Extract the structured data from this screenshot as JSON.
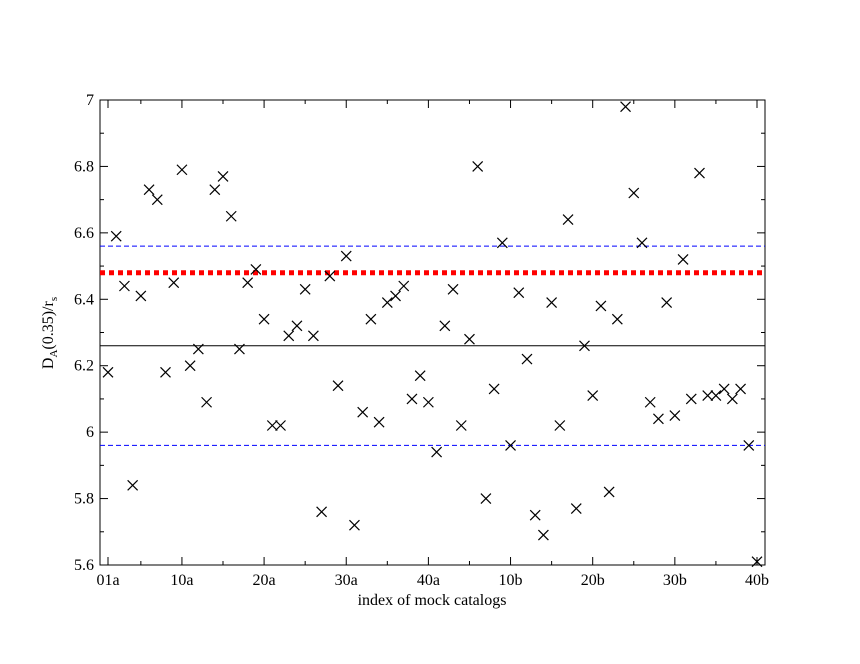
{
  "chart_data": {
    "type": "scatter",
    "title": "",
    "xlabel": "index of mock catalogs",
    "ylabel": {
      "main": "D",
      "sub1": "A",
      "mid": "(0.35)/r",
      "sub2": "s"
    },
    "xlim": [
      0,
      80
    ],
    "ylim": [
      5.6,
      7.0
    ],
    "grid": false,
    "x_tick_labels": [
      {
        "x": 0,
        "label": "01a"
      },
      {
        "x": 9,
        "label": "10a"
      },
      {
        "x": 19,
        "label": "20a"
      },
      {
        "x": 29,
        "label": "30a"
      },
      {
        "x": 39,
        "label": "40a"
      },
      {
        "x": 49,
        "label": "10b"
      },
      {
        "x": 59,
        "label": "20b"
      },
      {
        "x": 69,
        "label": "30b"
      },
      {
        "x": 79,
        "label": "40b"
      }
    ],
    "y_ticks": [
      5.6,
      5.8,
      6.0,
      6.2,
      6.4,
      6.6,
      6.8,
      7.0
    ],
    "y_tick_labels": [
      "5.6",
      "5.8",
      "6",
      "6.2",
      "6.4",
      "6.6",
      "6.8",
      "7"
    ],
    "marker": "x",
    "marker_color": "#000000",
    "points": {
      "x": [
        0,
        1,
        2,
        3,
        4,
        5,
        6,
        7,
        8,
        9,
        10,
        11,
        12,
        13,
        14,
        15,
        16,
        17,
        18,
        19,
        20,
        21,
        22,
        23,
        24,
        25,
        26,
        27,
        28,
        29,
        30,
        31,
        32,
        33,
        34,
        35,
        36,
        37,
        38,
        39,
        40,
        41,
        42,
        43,
        44,
        45,
        46,
        47,
        48,
        49,
        50,
        51,
        52,
        53,
        54,
        55,
        56,
        57,
        58,
        59,
        60,
        61,
        62,
        63,
        64,
        65,
        66,
        67,
        68,
        69,
        70,
        71,
        72,
        73,
        74,
        75,
        76,
        77,
        78,
        79
      ],
      "y": [
        6.18,
        6.59,
        6.44,
        5.84,
        6.41,
        6.73,
        6.7,
        6.18,
        6.45,
        6.79,
        6.2,
        6.25,
        6.09,
        6.73,
        6.77,
        6.65,
        6.25,
        6.45,
        6.49,
        6.34,
        6.02,
        6.02,
        6.29,
        6.32,
        6.43,
        6.29,
        5.76,
        6.47,
        6.14,
        6.53,
        5.72,
        6.06,
        6.34,
        6.03,
        6.39,
        6.41,
        6.44,
        6.1,
        6.17,
        6.09,
        5.94,
        6.32,
        6.43,
        6.02,
        6.28,
        6.8,
        5.8,
        6.13,
        6.57,
        5.96,
        6.42,
        6.22,
        5.75,
        5.69,
        6.39,
        6.02,
        6.64,
        5.77,
        6.26,
        6.11,
        6.38,
        5.82,
        6.34,
        6.98,
        6.72,
        6.57,
        6.09,
        6.04,
        6.39,
        6.05,
        6.52,
        6.1,
        6.78,
        6.11,
        6.11,
        6.13,
        6.1,
        6.13,
        5.96,
        5.61
      ]
    },
    "reference_lines": [
      {
        "y": 6.26,
        "style": "solid",
        "color": "#000000"
      },
      {
        "y": 6.48,
        "style": "dotted",
        "color": "#ff0000"
      },
      {
        "y": 6.56,
        "style": "dashed",
        "color": "#0000ff"
      },
      {
        "y": 5.96,
        "style": "dashed",
        "color": "#0000ff"
      }
    ]
  }
}
